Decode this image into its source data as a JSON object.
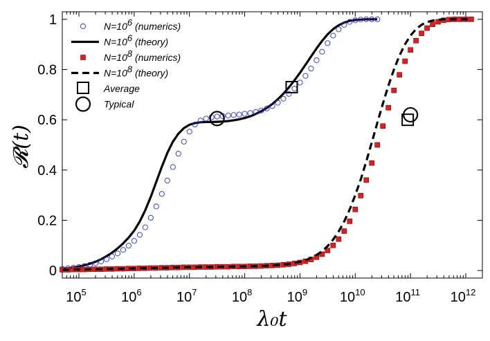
{
  "chart_data": {
    "type": "scatter",
    "xscale": "log",
    "xlim": [
      50000,
      2000000000000
    ],
    "ylim": [
      -0.03,
      1.03
    ],
    "xlabel": "λ₀t",
    "ylabel": "𝓡(t)",
    "xticks": [
      {
        "value": 100000,
        "base": "10",
        "exp": "5"
      },
      {
        "value": 1000000,
        "base": "10",
        "exp": "6"
      },
      {
        "value": 10000000,
        "base": "10",
        "exp": "7"
      },
      {
        "value": 100000000,
        "base": "10",
        "exp": "8"
      },
      {
        "value": 1000000000,
        "base": "10",
        "exp": "9"
      },
      {
        "value": 10000000000,
        "base": "10",
        "exp": "10"
      },
      {
        "value": 100000000000,
        "base": "10",
        "exp": "11"
      },
      {
        "value": 1000000000000,
        "base": "10",
        "exp": "12"
      }
    ],
    "yticks": [
      {
        "value": 0,
        "label": "0"
      },
      {
        "value": 0.2,
        "label": "0.2"
      },
      {
        "value": 0.4,
        "label": "0.4"
      },
      {
        "value": 0.6,
        "label": "0.6"
      },
      {
        "value": 0.8,
        "label": "0.8"
      },
      {
        "value": 1,
        "label": "1"
      }
    ],
    "legend_position": "top-left",
    "legend": [
      {
        "key": "n6_num",
        "label": "N=10",
        "sup": "6",
        "suffix": " (numerics)"
      },
      {
        "key": "n6_th",
        "label": "N=10",
        "sup": "6",
        "suffix": " (theory)"
      },
      {
        "key": "n8_num",
        "label": "N=10",
        "sup": "8",
        "suffix": " (numerics)"
      },
      {
        "key": "n8_th",
        "label": "N=10",
        "sup": "8",
        "suffix": " (theory)"
      },
      {
        "key": "average",
        "label": "Average",
        "sup": "",
        "suffix": ""
      },
      {
        "key": "typical",
        "label": "Typical",
        "sup": "",
        "suffix": ""
      }
    ],
    "series": [
      {
        "name": "N=10^6 (numerics)",
        "style": "circle-open",
        "color": "#1f2fd6",
        "x_log10": [
          4.7,
          4.8,
          4.9,
          5.0,
          5.1,
          5.2,
          5.3,
          5.4,
          5.5,
          5.6,
          5.7,
          5.8,
          5.9,
          6.0,
          6.1,
          6.2,
          6.3,
          6.4,
          6.5,
          6.6,
          6.7,
          6.8,
          6.9,
          7.0,
          7.1,
          7.2,
          7.3,
          7.4,
          7.5,
          7.6,
          7.7,
          7.8,
          7.9,
          8.0,
          8.1,
          8.2,
          8.3,
          8.4,
          8.5,
          8.6,
          8.7,
          8.8,
          8.9,
          9.0,
          9.1,
          9.2,
          9.3,
          9.4,
          9.5,
          9.6,
          9.7,
          9.8,
          9.9,
          10.0,
          10.1,
          10.2,
          10.3,
          10.4
        ],
        "y": [
          0.007,
          0.009,
          0.011,
          0.014,
          0.018,
          0.023,
          0.029,
          0.036,
          0.045,
          0.056,
          0.068,
          0.082,
          0.099,
          0.118,
          0.142,
          0.172,
          0.21,
          0.255,
          0.305,
          0.358,
          0.412,
          0.465,
          0.513,
          0.553,
          0.581,
          0.597,
          0.605,
          0.61,
          0.613,
          0.615,
          0.617,
          0.619,
          0.621,
          0.624,
          0.627,
          0.631,
          0.637,
          0.645,
          0.655,
          0.668,
          0.684,
          0.703,
          0.724,
          0.748,
          0.775,
          0.804,
          0.837,
          0.871,
          0.905,
          0.935,
          0.96,
          0.978,
          0.99,
          0.996,
          0.999,
          1.0,
          1.0,
          1.0
        ]
      },
      {
        "name": "N=10^6 (theory)",
        "style": "solid",
        "color": "#000000",
        "x_log10": [
          4.7,
          4.8,
          4.9,
          5.0,
          5.1,
          5.2,
          5.3,
          5.4,
          5.5,
          5.6,
          5.7,
          5.8,
          5.9,
          6.0,
          6.1,
          6.2,
          6.3,
          6.4,
          6.5,
          6.6,
          6.7,
          6.8,
          6.9,
          7.0,
          7.1,
          7.2,
          7.3,
          7.4,
          7.5,
          7.6,
          7.7,
          7.8,
          7.9,
          8.0,
          8.1,
          8.2,
          8.3,
          8.4,
          8.5,
          8.6,
          8.7,
          8.8,
          8.9,
          9.0,
          9.1,
          9.2,
          9.3,
          9.4,
          9.5,
          9.6,
          9.7,
          9.8,
          9.9,
          10.0,
          10.1,
          10.2,
          10.3,
          10.4
        ],
        "y": [
          0.007,
          0.009,
          0.012,
          0.016,
          0.021,
          0.027,
          0.035,
          0.045,
          0.057,
          0.071,
          0.088,
          0.108,
          0.131,
          0.159,
          0.195,
          0.24,
          0.293,
          0.353,
          0.413,
          0.468,
          0.513,
          0.545,
          0.567,
          0.58,
          0.587,
          0.59,
          0.591,
          0.591,
          0.592,
          0.593,
          0.595,
          0.598,
          0.602,
          0.607,
          0.614,
          0.623,
          0.634,
          0.647,
          0.663,
          0.682,
          0.704,
          0.729,
          0.757,
          0.787,
          0.819,
          0.852,
          0.884,
          0.914,
          0.94,
          0.961,
          0.976,
          0.987,
          0.994,
          0.997,
          0.999,
          1.0,
          1.0,
          1.0
        ]
      },
      {
        "name": "N=10^8 (numerics)",
        "style": "square-filled",
        "color": "#e01e1e",
        "x_log10": [
          4.7,
          4.8,
          4.9,
          5.0,
          5.1,
          5.2,
          5.3,
          5.4,
          5.5,
          5.6,
          5.7,
          5.8,
          5.9,
          6.0,
          6.1,
          6.2,
          6.3,
          6.4,
          6.5,
          6.6,
          6.7,
          6.8,
          6.9,
          7.0,
          7.1,
          7.2,
          7.3,
          7.4,
          7.5,
          7.6,
          7.7,
          7.8,
          7.9,
          8.0,
          8.1,
          8.2,
          8.3,
          8.4,
          8.5,
          8.6,
          8.7,
          8.8,
          8.9,
          9.0,
          9.1,
          9.2,
          9.3,
          9.4,
          9.5,
          9.6,
          9.7,
          9.8,
          9.9,
          10.0,
          10.1,
          10.2,
          10.3,
          10.4,
          10.5,
          10.6,
          10.7,
          10.8,
          10.9,
          11.0,
          11.1,
          11.2,
          11.3,
          11.4,
          11.5,
          11.6,
          11.7,
          11.8,
          11.9,
          12.0,
          12.1
        ],
        "y": [
          0.003,
          0.003,
          0.004,
          0.004,
          0.004,
          0.005,
          0.005,
          0.005,
          0.006,
          0.006,
          0.007,
          0.007,
          0.008,
          0.008,
          0.009,
          0.009,
          0.01,
          0.01,
          0.011,
          0.011,
          0.012,
          0.012,
          0.013,
          0.013,
          0.013,
          0.014,
          0.014,
          0.014,
          0.015,
          0.015,
          0.015,
          0.016,
          0.016,
          0.016,
          0.017,
          0.017,
          0.018,
          0.019,
          0.02,
          0.021,
          0.023,
          0.025,
          0.028,
          0.032,
          0.037,
          0.044,
          0.053,
          0.065,
          0.08,
          0.1,
          0.125,
          0.157,
          0.196,
          0.243,
          0.298,
          0.36,
          0.428,
          0.5,
          0.575,
          0.648,
          0.717,
          0.779,
          0.833,
          0.878,
          0.915,
          0.944,
          0.965,
          0.98,
          0.99,
          0.996,
          0.999,
          1.0,
          1.0,
          1.0,
          1.0
        ]
      },
      {
        "name": "N=10^8 (theory)",
        "style": "dashed",
        "color": "#000000",
        "x_log10": [
          4.7,
          4.8,
          4.9,
          5.0,
          5.1,
          5.2,
          5.3,
          5.4,
          5.5,
          5.6,
          5.7,
          5.8,
          5.9,
          6.0,
          6.1,
          6.2,
          6.3,
          6.4,
          6.5,
          6.6,
          6.7,
          6.8,
          6.9,
          7.0,
          7.1,
          7.2,
          7.3,
          7.4,
          7.5,
          7.6,
          7.7,
          7.8,
          7.9,
          8.0,
          8.1,
          8.2,
          8.3,
          8.4,
          8.5,
          8.6,
          8.7,
          8.8,
          8.9,
          9.0,
          9.1,
          9.2,
          9.3,
          9.4,
          9.5,
          9.6,
          9.7,
          9.8,
          9.9,
          10.0,
          10.1,
          10.2,
          10.3,
          10.4,
          10.5,
          10.6,
          10.7,
          10.8,
          10.9,
          11.0,
          11.1,
          11.2,
          11.3,
          11.4,
          11.5,
          11.6,
          11.7,
          11.8,
          11.9,
          12.0,
          12.1
        ],
        "y": [
          0.003,
          0.003,
          0.004,
          0.004,
          0.004,
          0.005,
          0.005,
          0.005,
          0.006,
          0.006,
          0.007,
          0.007,
          0.008,
          0.008,
          0.009,
          0.009,
          0.01,
          0.01,
          0.011,
          0.011,
          0.012,
          0.012,
          0.013,
          0.013,
          0.013,
          0.014,
          0.014,
          0.014,
          0.015,
          0.015,
          0.015,
          0.016,
          0.016,
          0.016,
          0.017,
          0.017,
          0.018,
          0.019,
          0.02,
          0.022,
          0.024,
          0.026,
          0.03,
          0.035,
          0.041,
          0.05,
          0.062,
          0.077,
          0.097,
          0.123,
          0.155,
          0.195,
          0.243,
          0.3,
          0.363,
          0.434,
          0.51,
          0.588,
          0.664,
          0.736,
          0.8,
          0.855,
          0.9,
          0.935,
          0.961,
          0.978,
          0.989,
          0.995,
          0.998,
          1.0,
          1.0,
          1.0,
          1.0,
          1.0,
          1.0
        ]
      }
    ],
    "markers": [
      {
        "name": "N=10^6 average",
        "type": "average",
        "x_log10": 8.85,
        "y": 0.73
      },
      {
        "name": "N=10^6 typical",
        "type": "typical",
        "x_log10": 7.5,
        "y": 0.605
      },
      {
        "name": "N=10^8 average",
        "type": "average",
        "x_log10": 10.95,
        "y": 0.6
      },
      {
        "name": "N=10^8 typical",
        "type": "typical",
        "x_log10": 11.0,
        "y": 0.62
      }
    ]
  }
}
